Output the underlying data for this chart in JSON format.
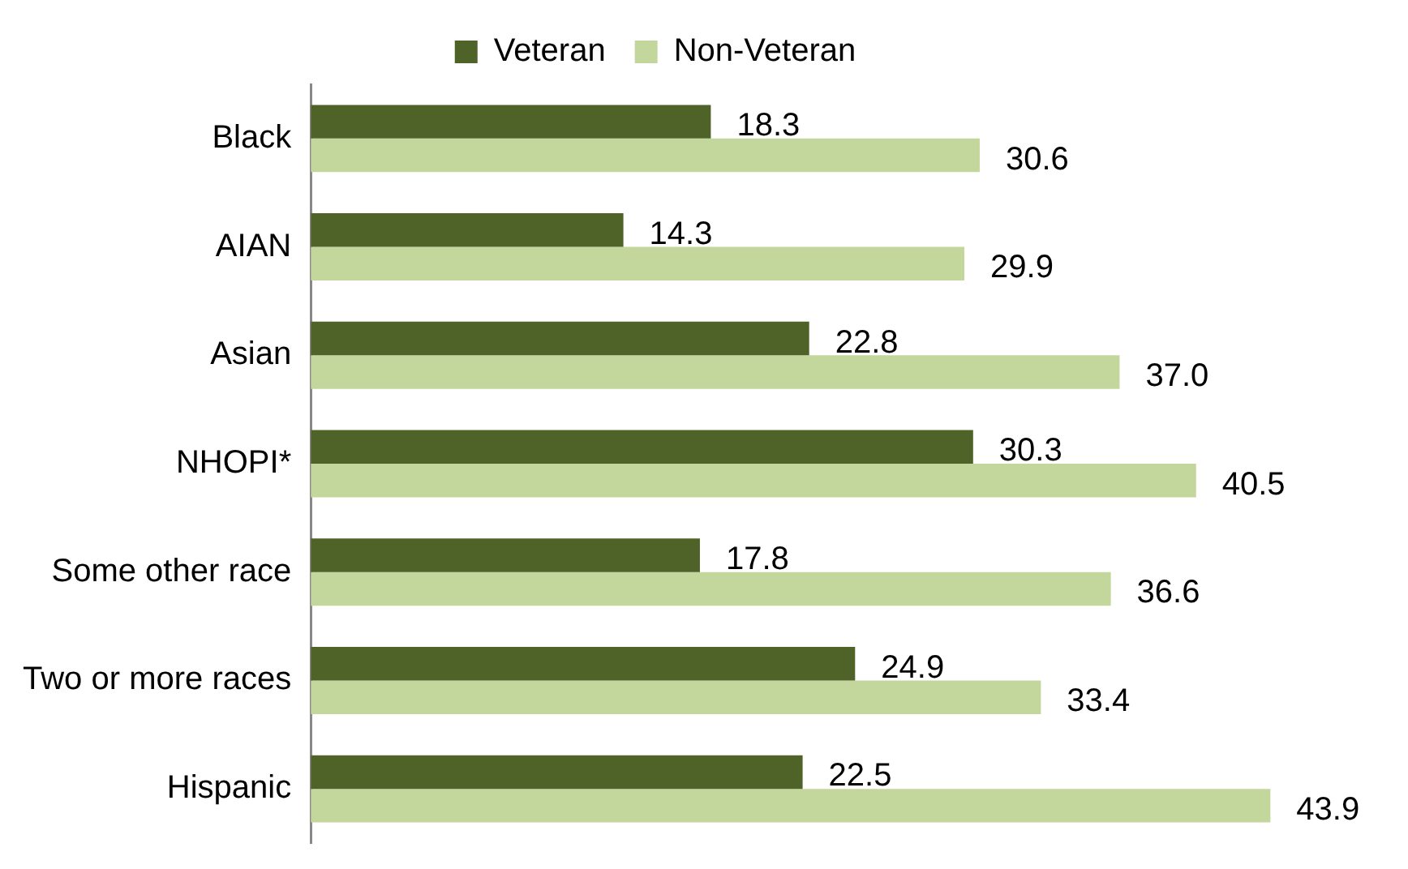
{
  "chart_data": {
    "type": "bar",
    "orientation": "horizontal",
    "categories": [
      "Black",
      "AIAN",
      "Asian",
      "NHOPI*",
      "Some other race",
      "Two or more races",
      "Hispanic"
    ],
    "series": [
      {
        "name": "Veteran",
        "color": "#4f6228",
        "values": [
          18.3,
          14.3,
          22.8,
          30.3,
          17.8,
          24.9,
          22.5
        ],
        "value_labels": [
          "18.3",
          "14.3",
          "22.8",
          "30.3",
          "17.8",
          "24.9",
          "22.5"
        ]
      },
      {
        "name": "Non-Veteran",
        "color": "#c3d69b",
        "values": [
          30.6,
          29.9,
          37.0,
          40.5,
          36.6,
          33.4,
          43.9
        ],
        "value_labels": [
          "30.6",
          "29.9",
          "37.0",
          "40.5",
          "36.6",
          "33.4",
          "43.9"
        ]
      }
    ],
    "legend": "top"
  }
}
